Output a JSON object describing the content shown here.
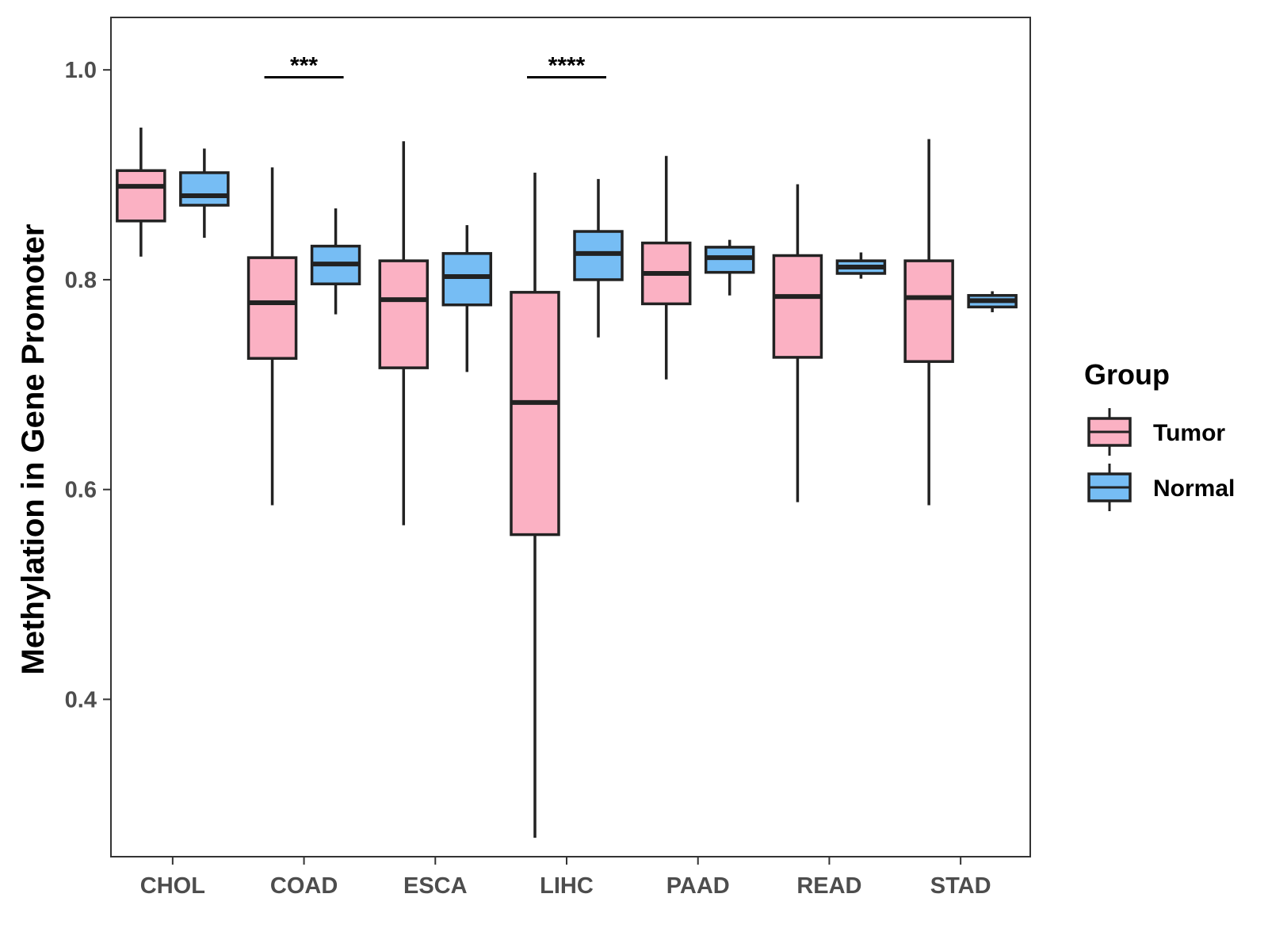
{
  "chart_data": {
    "type": "boxplot",
    "ylabel": "Methylation in Gene Promoter",
    "xlabel": "",
    "ylim": [
      0.25,
      1.05
    ],
    "yticks": [
      0.4,
      0.6,
      0.8,
      1.0
    ],
    "ytick_labels": [
      "0.4",
      "0.6",
      "0.8",
      "1.0"
    ],
    "categories": [
      "CHOL",
      "COAD",
      "ESCA",
      "LIHC",
      "PAAD",
      "READ",
      "STAD"
    ],
    "legend": {
      "title": "Group",
      "position": "right",
      "entries": [
        {
          "name": "Tumor",
          "color": "#FBB1C3"
        },
        {
          "name": "Normal",
          "color": "#76BDF4"
        }
      ]
    },
    "series": [
      {
        "name": "Tumor",
        "color": "#FBB1C3",
        "boxes": [
          {
            "category": "CHOL",
            "min": 0.822,
            "q1": 0.856,
            "median": 0.889,
            "q3": 0.904,
            "max": 0.945
          },
          {
            "category": "COAD",
            "min": 0.585,
            "q1": 0.725,
            "median": 0.778,
            "q3": 0.821,
            "max": 0.907
          },
          {
            "category": "ESCA",
            "min": 0.566,
            "q1": 0.716,
            "median": 0.781,
            "q3": 0.818,
            "max": 0.932
          },
          {
            "category": "LIHC",
            "min": 0.268,
            "q1": 0.557,
            "median": 0.683,
            "q3": 0.788,
            "max": 0.902
          },
          {
            "category": "PAAD",
            "min": 0.705,
            "q1": 0.777,
            "median": 0.806,
            "q3": 0.835,
            "max": 0.918
          },
          {
            "category": "READ",
            "min": 0.588,
            "q1": 0.726,
            "median": 0.784,
            "q3": 0.823,
            "max": 0.891
          },
          {
            "category": "STAD",
            "min": 0.585,
            "q1": 0.722,
            "median": 0.783,
            "q3": 0.818,
            "max": 0.934
          }
        ]
      },
      {
        "name": "Normal",
        "color": "#76BDF4",
        "boxes": [
          {
            "category": "CHOL",
            "min": 0.84,
            "q1": 0.871,
            "median": 0.88,
            "q3": 0.902,
            "max": 0.925
          },
          {
            "category": "COAD",
            "min": 0.767,
            "q1": 0.796,
            "median": 0.815,
            "q3": 0.832,
            "max": 0.868
          },
          {
            "category": "ESCA",
            "min": 0.712,
            "q1": 0.776,
            "median": 0.803,
            "q3": 0.825,
            "max": 0.852
          },
          {
            "category": "LIHC",
            "min": 0.745,
            "q1": 0.8,
            "median": 0.825,
            "q3": 0.846,
            "max": 0.896
          },
          {
            "category": "PAAD",
            "min": 0.785,
            "q1": 0.807,
            "median": 0.821,
            "q3": 0.831,
            "max": 0.838
          },
          {
            "category": "READ",
            "min": 0.801,
            "q1": 0.806,
            "median": 0.812,
            "q3": 0.818,
            "max": 0.826
          },
          {
            "category": "STAD",
            "min": 0.769,
            "q1": 0.774,
            "median": 0.78,
            "q3": 0.785,
            "max": 0.789
          }
        ]
      }
    ],
    "annotations": [
      {
        "category": "COAD",
        "label": "***",
        "y": 0.993
      },
      {
        "category": "LIHC",
        "label": "****",
        "y": 0.993
      }
    ]
  }
}
